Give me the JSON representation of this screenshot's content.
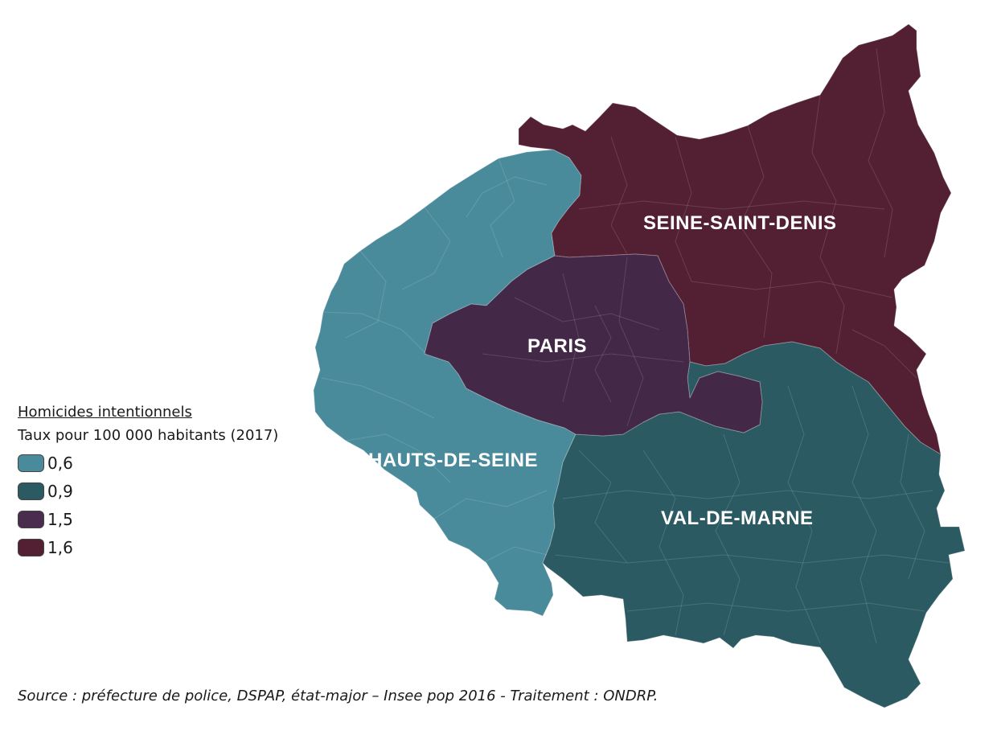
{
  "legend": {
    "title": "Homicides intentionnels",
    "subtitle": "Taux pour 100 000 habitants (2017)",
    "items": [
      {
        "label": "0,6",
        "color": "#4a8b9b"
      },
      {
        "label": "0,9",
        "color": "#2c5a63"
      },
      {
        "label": "1,5",
        "color": "#4a2c4e"
      },
      {
        "label": "1,6",
        "color": "#521f33"
      }
    ]
  },
  "departments": {
    "seine_saint_denis": {
      "label": "SEINE-SAINT-DENIS",
      "rate": "1,6",
      "color": "#521f33"
    },
    "paris": {
      "label": "PARIS",
      "rate": "1,5",
      "color": "#432847"
    },
    "hauts_de_seine": {
      "label": "HAUTS-DE-SEINE",
      "rate": "0,6",
      "color": "#4a8b9b"
    },
    "val_de_marne": {
      "label": "VAL-DE-MARNE",
      "rate": "0,9",
      "color": "#2c5a63"
    }
  },
  "source": "Source : préfecture de police, DSPAP, état-major – Insee pop 2016 - Traitement : ONDRP."
}
